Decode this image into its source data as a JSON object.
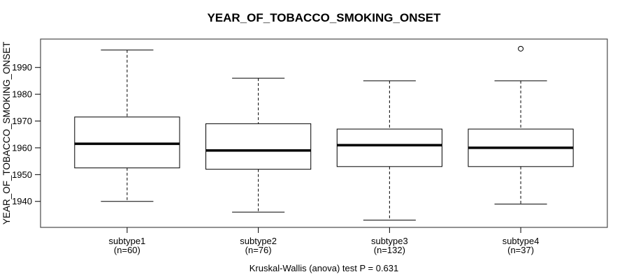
{
  "chart_data": {
    "type": "boxplot",
    "title": "YEAR_OF_TOBACCO_SMOKING_ONSET",
    "ylabel": "YEAR_OF_TOBACCO_SMOKING_ONSET",
    "footnote": "Kruskal-Wallis (anova) test P = 0.631",
    "background": "#ffffff",
    "line_color": "#000000",
    "frame_color": "#4a4a4a",
    "box_fill": "#ffffff",
    "grid": false,
    "legend": "none",
    "y_axis": {
      "ticks": [
        1940,
        1950,
        1960,
        1970,
        1980,
        1990
      ],
      "range": [
        1930.3,
        2000.6
      ]
    },
    "x_axis": {
      "range": [
        0.34,
        4.66
      ]
    },
    "box_width": 0.8,
    "staple_width": 0.4,
    "groups": [
      {
        "label": "subtype1",
        "n_label": "(n=60)",
        "n": 60,
        "position": 1,
        "whisker_low": 1940,
        "q1": 1952.5,
        "median": 1961.5,
        "q3": 1971.5,
        "whisker_high": 1996.5,
        "outliers": []
      },
      {
        "label": "subtype2",
        "n_label": "(n=76)",
        "n": 76,
        "position": 2,
        "whisker_low": 1936,
        "q1": 1952,
        "median": 1959,
        "q3": 1969,
        "whisker_high": 1986,
        "outliers": []
      },
      {
        "label": "subtype3",
        "n_label": "(n=132)",
        "n": 132,
        "position": 3,
        "whisker_low": 1933,
        "q1": 1953,
        "median": 1961,
        "q3": 1967,
        "whisker_high": 1985,
        "outliers": []
      },
      {
        "label": "subtype4",
        "n_label": "(n=37)",
        "n": 37,
        "position": 4,
        "whisker_low": 1939,
        "q1": 1953,
        "median": 1960,
        "q3": 1967,
        "whisker_high": 1985,
        "outliers": [
          1997
        ]
      }
    ]
  }
}
